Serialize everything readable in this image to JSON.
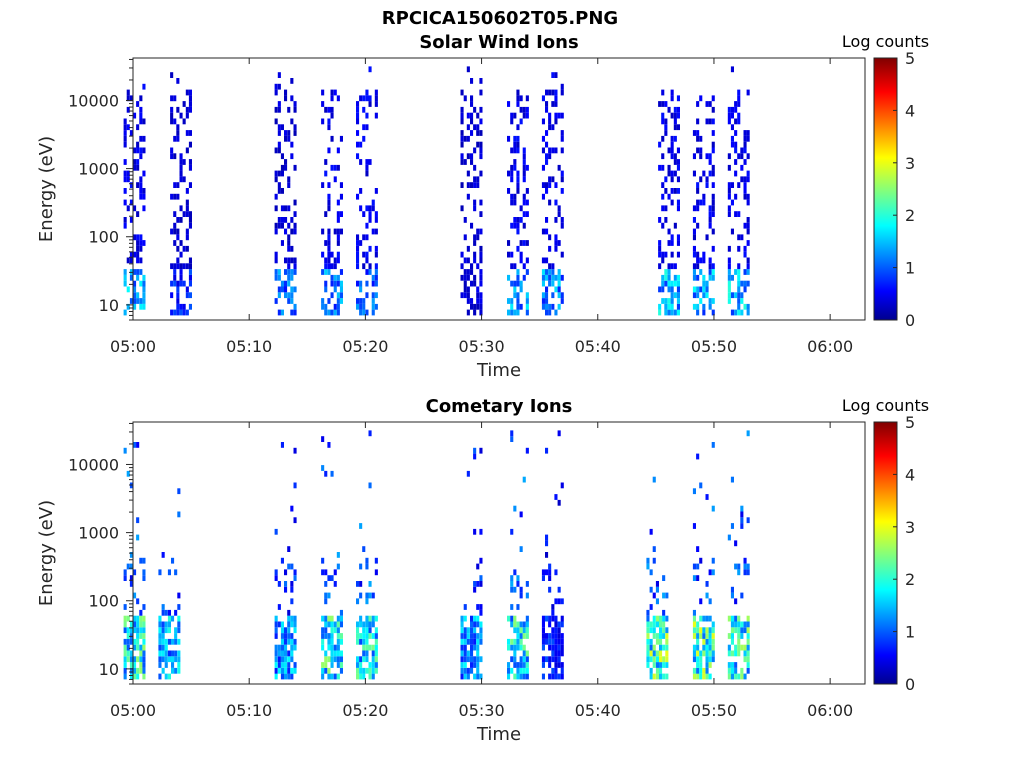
{
  "figure": {
    "filename_title": "RPCICA150602T05.PNG"
  },
  "colormap": {
    "name": "jet",
    "stops": [
      "#00008f",
      "#0000ff",
      "#00ffff",
      "#ffff00",
      "#ff0000",
      "#800000"
    ]
  },
  "chart_data": [
    {
      "type": "heatmap",
      "title": "Solar Wind Ions",
      "xlabel": "Time",
      "ylabel": "Energy (eV)",
      "yscale": "log",
      "xlim": [
        "05:00",
        "06:03"
      ],
      "ylim": [
        6,
        42000
      ],
      "x_ticks": [
        "05:00",
        "05:10",
        "05:20",
        "05:30",
        "05:40",
        "05:50",
        "06:00"
      ],
      "y_ticks": [
        10,
        100,
        1000,
        10000
      ],
      "y_tick_labels": [
        "10",
        "100",
        "1000",
        "10000"
      ],
      "colorbar": {
        "label": "Log counts",
        "min": 0,
        "max": 5,
        "ticks": [
          "0",
          "1",
          "2",
          "3",
          "4",
          "5"
        ]
      },
      "grid": false,
      "bursts": [
        {
          "time": "05:00",
          "count_level": 0.4,
          "bright_level": 1.8
        },
        {
          "time": "05:04",
          "count_level": 0.3,
          "bright_level": 1.0
        },
        {
          "time": "05:13",
          "count_level": 0.3,
          "bright_level": 1.5
        },
        {
          "time": "05:17",
          "count_level": 0.4,
          "bright_level": 1.6
        },
        {
          "time": "05:20",
          "count_level": 0.4,
          "bright_level": 1.4
        },
        {
          "time": "05:29",
          "count_level": 0.3,
          "bright_level": 0.5
        },
        {
          "time": "05:33",
          "count_level": 0.4,
          "bright_level": 1.8
        },
        {
          "time": "05:36",
          "count_level": 0.4,
          "bright_level": 1.7
        },
        {
          "time": "05:46",
          "count_level": 0.4,
          "bright_level": 2.0
        },
        {
          "time": "05:49",
          "count_level": 0.4,
          "bright_level": 1.9
        },
        {
          "time": "05:52",
          "count_level": 0.4,
          "bright_level": 2.0
        }
      ]
    },
    {
      "type": "heatmap",
      "title": "Cometary Ions",
      "xlabel": "Time",
      "ylabel": "Energy (eV)",
      "yscale": "log",
      "xlim": [
        "05:00",
        "06:03"
      ],
      "ylim": [
        6,
        42000
      ],
      "x_ticks": [
        "05:00",
        "05:10",
        "05:20",
        "05:30",
        "05:40",
        "05:50",
        "06:00"
      ],
      "y_ticks": [
        10,
        100,
        1000,
        10000
      ],
      "y_tick_labels": [
        "10",
        "100",
        "1000",
        "10000"
      ],
      "colorbar": {
        "label": "Log counts",
        "min": 0,
        "max": 5,
        "ticks": [
          "0",
          "1",
          "2",
          "3",
          "4",
          "5"
        ]
      },
      "grid": false,
      "bursts": [
        {
          "time": "05:00",
          "count_level": 1.0,
          "bright_level": 2.6
        },
        {
          "time": "05:03",
          "count_level": 1.0,
          "bright_level": 2.0
        },
        {
          "time": "05:13",
          "count_level": 0.8,
          "bright_level": 1.8
        },
        {
          "time": "05:17",
          "count_level": 1.0,
          "bright_level": 2.6
        },
        {
          "time": "05:20",
          "count_level": 1.0,
          "bright_level": 2.5
        },
        {
          "time": "05:29",
          "count_level": 0.8,
          "bright_level": 1.8
        },
        {
          "time": "05:33",
          "count_level": 1.0,
          "bright_level": 2.5
        },
        {
          "time": "05:36",
          "count_level": 0.6,
          "bright_level": 1.0
        },
        {
          "time": "05:45",
          "count_level": 1.0,
          "bright_level": 3.0
        },
        {
          "time": "05:49",
          "count_level": 1.0,
          "bright_level": 3.0
        },
        {
          "time": "05:52",
          "count_level": 1.0,
          "bright_level": 2.7
        }
      ]
    }
  ]
}
